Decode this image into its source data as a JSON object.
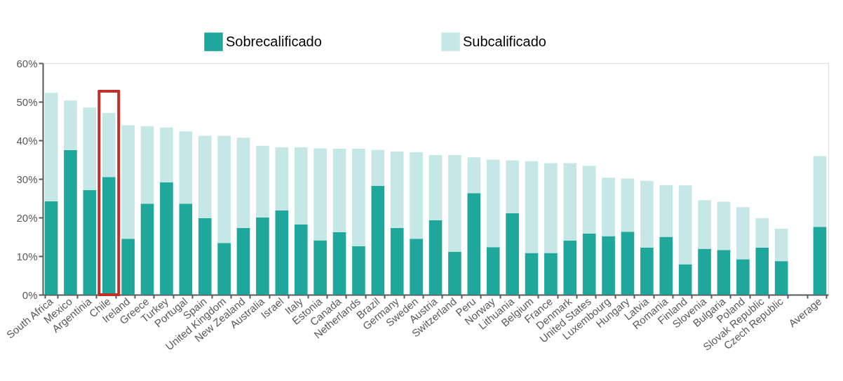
{
  "chart_data": {
    "type": "bar",
    "stacked": true,
    "legend": "top",
    "grid": false,
    "categories": [
      "South Africa",
      "Mexico",
      "Argentinia",
      "Chile",
      "Ireland",
      "Greece",
      "Turkey",
      "Portugal",
      "Spain",
      "United Kingdom",
      "New Zealand",
      "Australia",
      "Israel",
      "Italy",
      "Estonia",
      "Canada",
      "Netherlands",
      "Brazil",
      "Germany",
      "Sweden",
      "Austria",
      "Switzerland",
      "Peru",
      "Norway",
      "Lithuania",
      "Belgium",
      "France",
      "Denmark",
      "United States",
      "Luxembourg",
      "Hungary",
      "Latvia",
      "Romania",
      "Finland",
      "Slovenia",
      "Bulgaria",
      "Poland",
      "Slovak Republic",
      "Czech Republic",
      null,
      "Average"
    ],
    "series": [
      {
        "name": "Sobrecalificado",
        "color": "#1fa79c",
        "values": [
          24.2,
          37.5,
          27.1,
          30.5,
          14.5,
          23.6,
          29.1,
          23.6,
          19.8,
          13.4,
          17.3,
          20.0,
          21.8,
          18.2,
          14.1,
          16.2,
          12.6,
          28.2,
          17.3,
          14.5,
          19.3,
          11.1,
          26.3,
          12.3,
          21.1,
          10.8,
          10.8,
          14.0,
          15.8,
          15.2,
          16.3,
          12.2,
          15.0,
          7.9,
          11.9,
          11.6,
          9.2,
          12.2,
          8.7,
          null,
          17.6
        ]
      },
      {
        "name": "Subcalificado",
        "color": "#c5e8e6",
        "values": [
          28.1,
          12.8,
          21.4,
          16.6,
          29.4,
          20.1,
          14.2,
          18.7,
          21.4,
          27.8,
          23.4,
          18.6,
          16.4,
          20.0,
          23.8,
          21.6,
          25.2,
          9.3,
          19.8,
          22.4,
          16.9,
          25.1,
          9.3,
          22.7,
          13.7,
          23.8,
          23.3,
          20.1,
          17.6,
          15.1,
          13.8,
          17.3,
          13.4,
          20.4,
          12.6,
          12.5,
          13.5,
          7.6,
          8.4,
          null,
          18.3
        ]
      }
    ],
    "ylim": [
      0,
      60
    ],
    "yticks": [
      {
        "value": 0,
        "label": "0%"
      },
      {
        "value": 10,
        "label": "10%"
      },
      {
        "value": 20,
        "label": "20%"
      },
      {
        "value": 30,
        "label": "30%"
      },
      {
        "value": 40,
        "label": "40%"
      },
      {
        "value": 50,
        "label": "50%"
      },
      {
        "value": 60,
        "label": "60%"
      }
    ]
  }
}
